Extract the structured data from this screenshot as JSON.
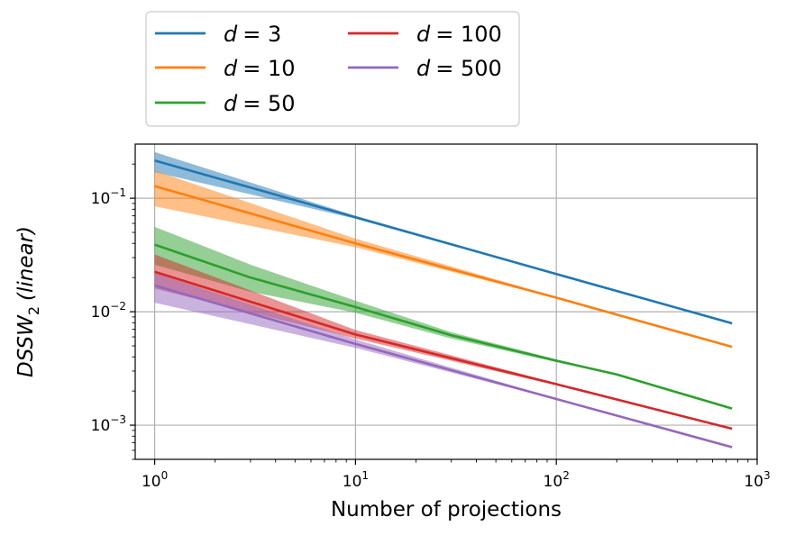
{
  "chart_data": {
    "type": "line",
    "xscale": "log",
    "yscale": "log",
    "xlabel": "Number of projections",
    "ylabel": "DSSW",
    "ylabel_sub": "2",
    "ylabel_suffix": "(linear)",
    "xlim": [
      0.8,
      1000
    ],
    "ylim": [
      0.0005,
      0.3
    ],
    "x_ticks": [
      {
        "base": "10",
        "exp": "0",
        "value": 1
      },
      {
        "base": "10",
        "exp": "1",
        "value": 10
      },
      {
        "base": "10",
        "exp": "2",
        "value": 100
      },
      {
        "base": "10",
        "exp": "3",
        "value": 1000
      }
    ],
    "y_ticks": [
      {
        "base": "10",
        "exp": "−1",
        "value": 0.1
      },
      {
        "base": "10",
        "exp": "−2",
        "value": 0.01
      },
      {
        "base": "10",
        "exp": "−3",
        "value": 0.001
      }
    ],
    "grid": true,
    "legend_position": "top-left, above plot, two columns",
    "series": [
      {
        "name": "d = 3",
        "var": "d",
        "eq": "= 3",
        "color": "#1f77b4",
        "x": [
          1,
          10,
          100,
          750
        ],
        "y": [
          0.215,
          0.068,
          0.0215,
          0.0079
        ],
        "lo": [
          0.17,
          0.066,
          0.0213,
          0.0079
        ],
        "hi": [
          0.255,
          0.07,
          0.0217,
          0.0079
        ]
      },
      {
        "name": "d = 10",
        "var": "d",
        "eq": "= 10",
        "color": "#ff7f0e",
        "x": [
          1,
          10,
          100,
          750
        ],
        "y": [
          0.128,
          0.04,
          0.0133,
          0.0049
        ],
        "lo": [
          0.085,
          0.037,
          0.0131,
          0.0049
        ],
        "hi": [
          0.175,
          0.044,
          0.0135,
          0.0049
        ]
      },
      {
        "name": "d = 50",
        "var": "d",
        "eq": "= 50",
        "color": "#2ca02c",
        "x": [
          1,
          3,
          10,
          30,
          100,
          200,
          750
        ],
        "y": [
          0.039,
          0.02,
          0.011,
          0.0062,
          0.0037,
          0.0028,
          0.0014
        ],
        "lo": [
          0.026,
          0.015,
          0.0098,
          0.0058,
          0.0036,
          0.0028,
          0.0014
        ],
        "hi": [
          0.056,
          0.026,
          0.0125,
          0.0066,
          0.0038,
          0.0028,
          0.0014
        ]
      },
      {
        "name": "d = 100",
        "var": "d",
        "eq": "= 100",
        "color": "#d62728",
        "x": [
          1,
          10,
          100,
          750
        ],
        "y": [
          0.0225,
          0.0063,
          0.0023,
          0.00093
        ],
        "lo": [
          0.016,
          0.0058,
          0.00225,
          0.00093
        ],
        "hi": [
          0.032,
          0.0069,
          0.00235,
          0.00093
        ]
      },
      {
        "name": "d = 500",
        "var": "d",
        "eq": "= 500",
        "color": "#9467bd",
        "x": [
          1,
          10,
          100,
          750
        ],
        "y": [
          0.017,
          0.0052,
          0.0017,
          0.00064
        ],
        "lo": [
          0.012,
          0.0048,
          0.00168,
          0.00064
        ],
        "hi": [
          0.022,
          0.0057,
          0.00172,
          0.00064
        ]
      }
    ]
  }
}
